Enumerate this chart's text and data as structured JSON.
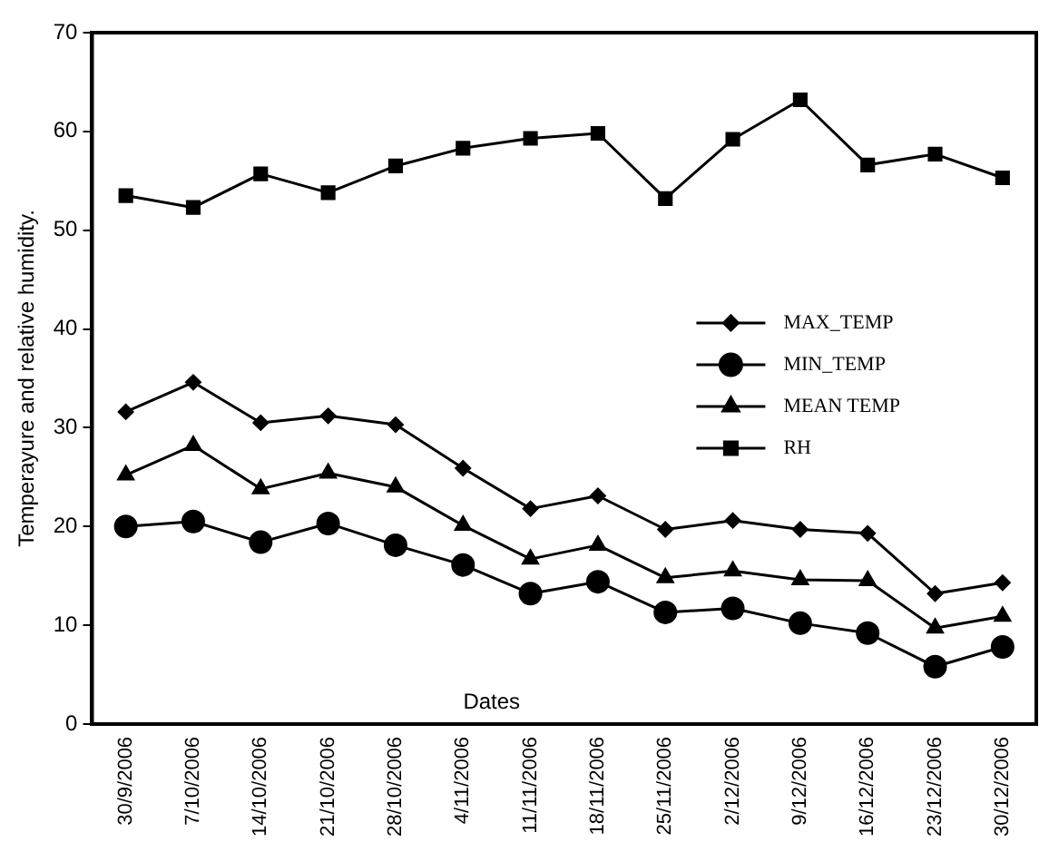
{
  "chart_data": {
    "type": "line",
    "ylabel": "Temperayure and relative humidity.",
    "xlabel": "Dates",
    "categories": [
      "30/9/2006",
      "7/10/2006",
      "14/10/2006",
      "21/10/2006",
      "28/10/2006",
      "4/11/2006",
      "11/11/2006",
      "18/11/2006",
      "25/11/2006",
      "2/12/2006",
      "9/12/2006",
      "16/12/2006",
      "23/12/2006",
      "30/12/2006"
    ],
    "series": [
      {
        "name": "MAX_TEMP",
        "color": "#000000",
        "marker": "diamond",
        "values": [
          31.6,
          34.6,
          30.5,
          31.2,
          30.3,
          25.9,
          21.8,
          23.1,
          19.7,
          20.6,
          19.7,
          19.3,
          13.2,
          14.3
        ]
      },
      {
        "name": "MIN_TEMP",
        "color": "#000000",
        "marker": "circle",
        "values": [
          20.0,
          20.5,
          18.4,
          20.3,
          18.1,
          16.1,
          13.2,
          14.4,
          11.3,
          11.7,
          10.2,
          9.2,
          5.8,
          7.8
        ]
      },
      {
        "name": "MEAN TEMP",
        "color": "#000000",
        "marker": "triangle",
        "values": [
          25.2,
          28.2,
          23.8,
          25.4,
          24.0,
          20.1,
          16.7,
          18.1,
          14.8,
          15.5,
          14.6,
          14.5,
          9.7,
          10.9
        ]
      },
      {
        "name": "RH",
        "color": "#000000",
        "marker": "square",
        "values": [
          53.5,
          52.3,
          55.7,
          53.8,
          56.5,
          58.3,
          59.3,
          59.8,
          53.2,
          59.2,
          63.2,
          56.6,
          57.7,
          55.3
        ]
      }
    ],
    "ylim": [
      0,
      70
    ],
    "yticks": [
      0,
      10,
      20,
      30,
      40,
      50,
      60,
      70
    ],
    "grid": false,
    "legend": "right",
    "line_style": "solid"
  }
}
